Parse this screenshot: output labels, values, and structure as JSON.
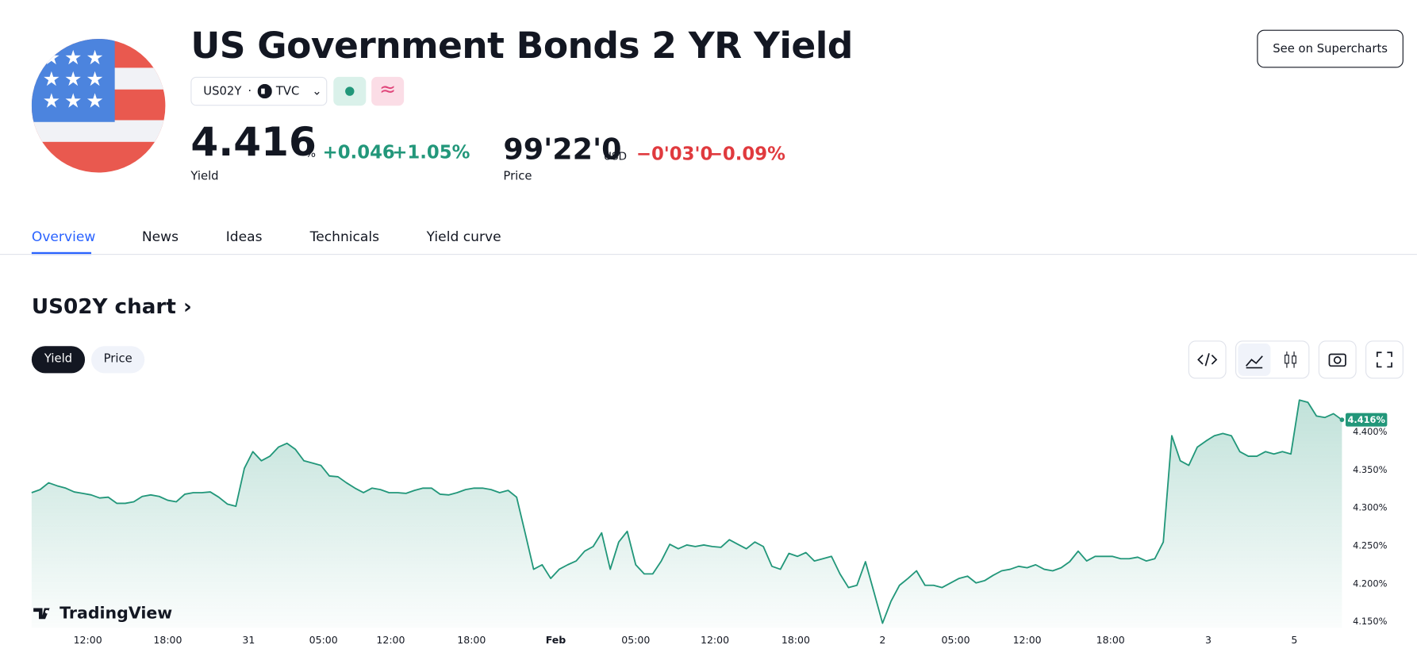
{
  "header": {
    "title": "US Government Bonds 2 YR Yield",
    "symbol": "US02Y",
    "exchange": "TVC",
    "button": "See on Supercharts",
    "yield": {
      "value": "4.416",
      "unit": "%",
      "change": "+0.046",
      "change_pct": "+1.05%",
      "label": "Yield"
    },
    "price": {
      "value": "99'22'0",
      "unit": "USD",
      "change": "−0'03'0",
      "change_pct": "−0.09%",
      "label": "Price"
    }
  },
  "tabs": [
    "Overview",
    "News",
    "Ideas",
    "Technicals",
    "Yield curve"
  ],
  "section": {
    "title": "US02Y chart",
    "toggles": [
      "Yield",
      "Price"
    ],
    "watermark": "TradingView"
  },
  "chart_data": {
    "type": "area",
    "color": "#22977a",
    "last_value_label": "4.416%",
    "values": [
      4.32,
      4.324,
      4.333,
      4.329,
      4.326,
      4.321,
      4.319,
      4.317,
      4.313,
      4.314,
      4.306,
      4.306,
      4.308,
      4.315,
      4.317,
      4.315,
      4.31,
      4.308,
      4.318,
      4.32,
      4.32,
      4.321,
      4.314,
      4.305,
      4.302,
      4.352,
      4.374,
      4.362,
      4.368,
      4.38,
      4.385,
      4.377,
      4.362,
      4.359,
      4.356,
      4.342,
      4.341,
      4.333,
      4.326,
      4.32,
      4.326,
      4.324,
      4.32,
      4.32,
      4.319,
      4.323,
      4.326,
      4.326,
      4.318,
      4.317,
      4.32,
      4.324,
      4.326,
      4.326,
      4.324,
      4.32,
      4.323,
      4.314,
      4.267,
      4.219,
      4.225,
      4.207,
      4.219,
      4.225,
      4.23,
      4.243,
      4.249,
      4.267,
      4.219,
      4.255,
      4.269,
      4.225,
      4.213,
      4.213,
      4.23,
      4.252,
      4.246,
      4.251,
      4.249,
      4.251,
      4.249,
      4.248,
      4.258,
      4.252,
      4.246,
      4.255,
      4.249,
      4.223,
      4.219,
      4.24,
      4.236,
      4.241,
      4.23,
      4.233,
      4.236,
      4.213,
      4.195,
      4.198,
      4.229,
      4.189,
      4.148,
      4.177,
      4.198,
      4.207,
      4.217,
      4.198,
      4.198,
      4.195,
      4.201,
      4.207,
      4.21,
      4.201,
      4.204,
      4.211,
      4.217,
      4.219,
      4.223,
      4.221,
      4.225,
      4.219,
      4.217,
      4.221,
      4.229,
      4.243,
      4.23,
      4.236,
      4.236,
      4.236,
      4.233,
      4.233,
      4.235,
      4.23,
      4.233,
      4.255,
      4.395,
      4.362,
      4.356,
      4.38,
      4.388,
      4.395,
      4.398,
      4.395,
      4.374,
      4.368,
      4.368,
      4.374,
      4.371,
      4.374,
      4.371,
      4.442,
      4.439,
      4.421,
      4.419,
      4.424,
      4.416
    ],
    "xlim": [
      0,
      154
    ],
    "xticks": [
      {
        "value": 6.6,
        "label": "12:00"
      },
      {
        "value": 16,
        "label": "18:00"
      },
      {
        "value": 25.5,
        "label": "31"
      },
      {
        "value": 34.3,
        "label": "05:00"
      },
      {
        "value": 42.2,
        "label": "12:00"
      },
      {
        "value": 51.7,
        "label": "18:00"
      },
      {
        "value": 61.6,
        "label": "Feb"
      },
      {
        "value": 71,
        "label": "05:00"
      },
      {
        "value": 80.3,
        "label": "12:00"
      },
      {
        "value": 89.8,
        "label": "18:00"
      },
      {
        "value": 100,
        "label": "2"
      },
      {
        "value": 108.6,
        "label": "05:00"
      },
      {
        "value": 117,
        "label": "12:00"
      },
      {
        "value": 126.8,
        "label": "18:00"
      },
      {
        "value": 138.3,
        "label": "3"
      },
      {
        "value": 148.4,
        "label": "5"
      }
    ],
    "ylim": [
      4.142,
      4.445
    ],
    "yticks": [
      {
        "value": 4.15,
        "label": "4.150%"
      },
      {
        "value": 4.2,
        "label": "4.200%"
      },
      {
        "value": 4.25,
        "label": "4.250%"
      },
      {
        "value": 4.3,
        "label": "4.300%"
      },
      {
        "value": 4.35,
        "label": "4.350%"
      },
      {
        "value": 4.4,
        "label": "4.400%"
      }
    ]
  }
}
